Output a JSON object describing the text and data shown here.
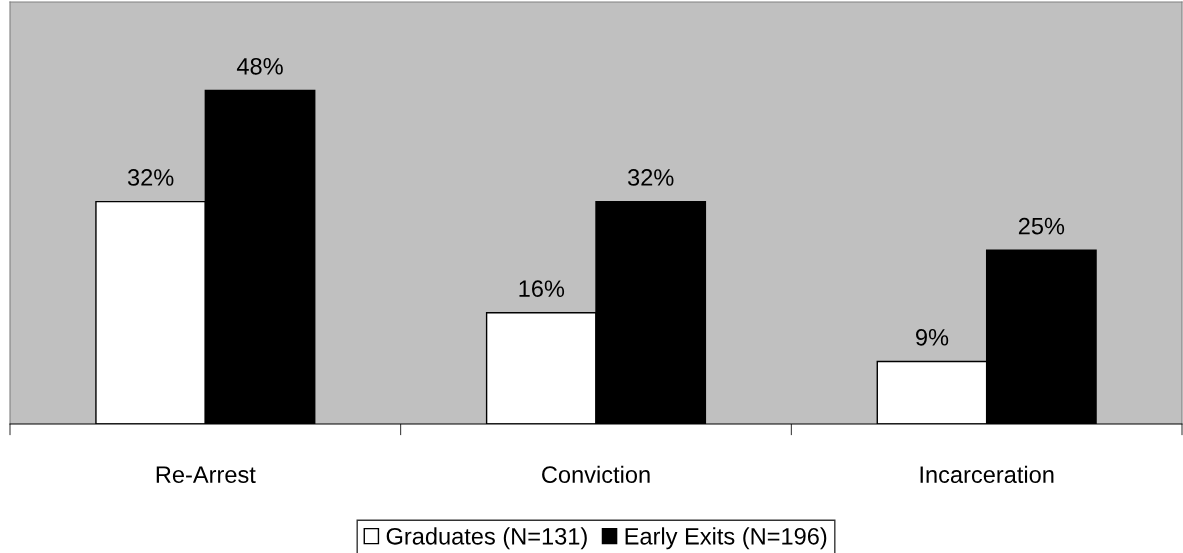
{
  "chart_data": {
    "type": "bar",
    "categories": [
      "Re-Arrest",
      "Conviction",
      "Incarceration"
    ],
    "series": [
      {
        "name": "Graduates (N=131)",
        "color": "#ffffff",
        "values": [
          32,
          16,
          9
        ],
        "value_labels": [
          "32%",
          "16%",
          "9%"
        ]
      },
      {
        "name": "Early Exits (N=196)",
        "color": "#000000",
        "values": [
          48,
          32,
          25
        ],
        "value_labels": [
          "48%",
          "32%",
          "25%"
        ]
      }
    ],
    "legend": "bottom",
    "grid": false
  }
}
